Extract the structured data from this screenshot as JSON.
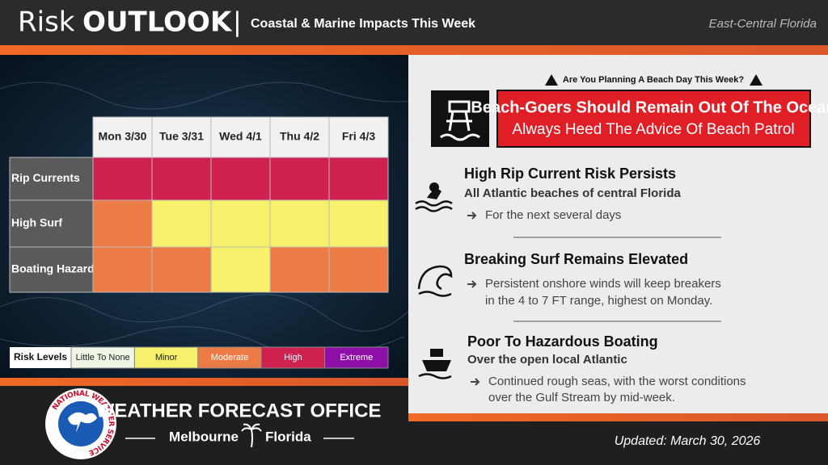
{
  "header": {
    "title_prefix": "Risk",
    "title_main": "OUTLOOK",
    "separator": "|",
    "subtitle": "Coastal & Marine Impacts This Week",
    "region": "East-Central Florida"
  },
  "risk_table": {
    "columns": [
      "Mon 3/30",
      "Tue 3/31",
      "Wed 4/1",
      "Thu 4/2",
      "Fri 4/3"
    ],
    "rows": [
      {
        "label": "Rip Currents",
        "levels": [
          "High",
          "High",
          "High",
          "High",
          "High"
        ]
      },
      {
        "label": "High Surf",
        "levels": [
          "Moderate",
          "Minor",
          "Minor",
          "Minor",
          "Minor"
        ]
      },
      {
        "label": "Boating Hazards",
        "levels": [
          "Moderate",
          "Moderate",
          "Minor",
          "Moderate",
          "Moderate"
        ]
      }
    ]
  },
  "legend": {
    "title": "Risk Levels",
    "levels": [
      {
        "name": "Little To None",
        "color": "#eef6e6"
      },
      {
        "name": "Minor",
        "color": "#f7f06a"
      },
      {
        "name": "Moderate",
        "color": "#ec7b45"
      },
      {
        "name": "High",
        "color": "#cf2150"
      },
      {
        "name": "Extreme",
        "color": "#8d0fa8"
      }
    ]
  },
  "beach_alert": {
    "question": "Are You Planning A Beach Day This Week?",
    "headline": "Beach-Goers Should Remain Out Of The Ocean",
    "subline": "Always Heed The Advice Of Beach Patrol"
  },
  "impacts": [
    {
      "title": "High Rip Current Risk Persists",
      "subtitle": "All Atlantic beaches of central Florida",
      "detail": [
        "For the next several days"
      ]
    },
    {
      "title": "Breaking Surf Remains Elevated",
      "detail": [
        "Persistent onshore winds will keep breakers",
        "in the 4 to 7 FT range, highest on Monday."
      ]
    },
    {
      "title": "Poor To Hazardous Boating",
      "subtitle": "Over the open local Atlantic",
      "detail": [
        "Continued rough seas, with the worst conditions",
        "over the Gulf Stream by mid-week."
      ]
    }
  ],
  "footer": {
    "logo_text": "NATIONAL WEATHER SERVICE",
    "office": "WEATHER FORECAST OFFICE",
    "city": "Melbourne",
    "state": "Florida",
    "updated": "Updated: March 30, 2026"
  }
}
